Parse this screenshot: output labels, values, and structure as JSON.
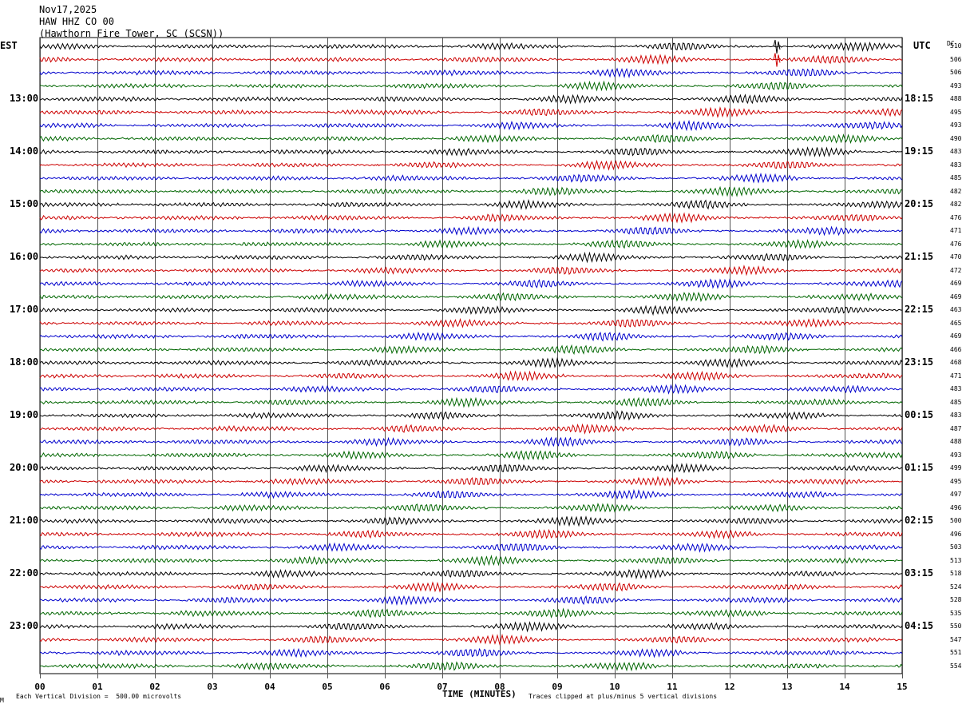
{
  "header": {
    "date": "Nov17,2025",
    "station": "HAW HHZ CO 00",
    "location": "(Hawthorn Fire Tower, SC (SCSN))"
  },
  "tz_left": "EST",
  "tz_right": "UTC",
  "dc_label": "DC",
  "footer": {
    "scale": "Each Vertical Division =  500.00 microvolts",
    "xlabel": "TIME (MINUTES)",
    "clip": "Traces clipped at plus/minus 5 vertical divisions",
    "corner": "M"
  },
  "chart_data": {
    "type": "line",
    "title": "HAW HHZ CO 00",
    "xlabel": "TIME (MINUTES)",
    "xlim": [
      0,
      15
    ],
    "x_ticks": [
      "00",
      "01",
      "02",
      "03",
      "04",
      "05",
      "06",
      "07",
      "08",
      "09",
      "10",
      "11",
      "12",
      "13",
      "14",
      "15"
    ],
    "grid": "vertical every minute",
    "trace_colors": [
      "#000000",
      "#cc0000",
      "#0000cc",
      "#006600"
    ],
    "left_hour_labels": [
      "13:00",
      "14:00",
      "15:00",
      "16:00",
      "17:00",
      "18:00",
      "19:00",
      "20:00",
      "21:00",
      "22:00",
      "23:00"
    ],
    "right_hour_labels": [
      "18:15",
      "19:15",
      "20:15",
      "21:15",
      "22:15",
      "23:15",
      "00:15",
      "01:15",
      "02:15",
      "03:15",
      "04:15"
    ],
    "dc_offsets": [
      510,
      506,
      506,
      493,
      488,
      495,
      493,
      490,
      483,
      483,
      485,
      482,
      482,
      476,
      471,
      476,
      470,
      472,
      469,
      469,
      463,
      465,
      469,
      466,
      468,
      471,
      483,
      485,
      483,
      487,
      488,
      493,
      499,
      495,
      497,
      496,
      500,
      496,
      503,
      513,
      518,
      524,
      528,
      535,
      550,
      547,
      551,
      554
    ]
  }
}
